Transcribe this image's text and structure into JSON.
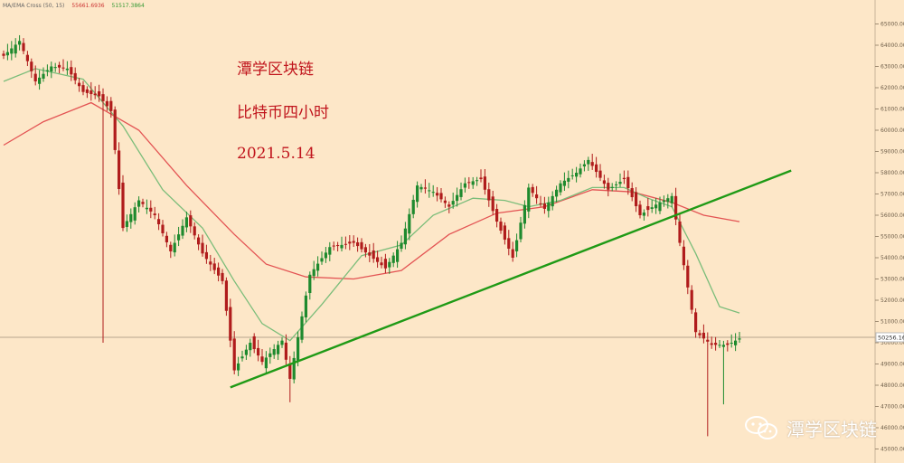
{
  "indicator": {
    "label": "MA/EMA Cross (50, 15)",
    "val1": "55661.6936",
    "val2": "51517.3864"
  },
  "annotations": {
    "title": "潭学区块链",
    "subtitle": "比特币四小时",
    "date": "2021.5.14"
  },
  "watermark": "潭学区块链",
  "colors": {
    "background": "#fde7c8",
    "up": "#1e8a2e",
    "down": "#b01c1c",
    "ma_slow": "#e35353",
    "ma_fast": "#7bbd7a",
    "trendline": "#1f9a16",
    "price_line": "#b7a58e"
  },
  "chart_data": {
    "type": "candlestick",
    "title": "",
    "ylim": [
      45000,
      66000
    ],
    "y_ticks": [
      "65000.00",
      "64000.00",
      "63000.00",
      "62000.00",
      "61000.00",
      "60000.00",
      "59000.00",
      "58000.00",
      "57000.00",
      "56000.00",
      "55000.00",
      "54000.00",
      "53000.00",
      "52000.00",
      "51000.00",
      "50000.00",
      "49000.00",
      "48000.00",
      "47000.00",
      "46000.00",
      "45000.00"
    ],
    "current_price": {
      "label": "50256.16",
      "value": 50256.16
    },
    "anchors": [
      [
        0,
        63500
      ],
      [
        4,
        64200
      ],
      [
        8,
        62300
      ],
      [
        12,
        63000
      ],
      [
        16,
        62900
      ],
      [
        20,
        61800
      ],
      [
        24,
        61600
      ],
      [
        27,
        60900
      ],
      [
        30,
        55400
      ],
      [
        34,
        56700
      ],
      [
        38,
        56000
      ],
      [
        42,
        54300
      ],
      [
        46,
        55900
      ],
      [
        50,
        54200
      ],
      [
        55,
        52900
      ],
      [
        58,
        48700
      ],
      [
        62,
        50000
      ],
      [
        65,
        49100
      ],
      [
        70,
        50100
      ],
      [
        72,
        48300
      ],
      [
        77,
        53200
      ],
      [
        82,
        54500
      ],
      [
        88,
        54700
      ],
      [
        92,
        54100
      ],
      [
        96,
        53500
      ],
      [
        100,
        54700
      ],
      [
        104,
        57400
      ],
      [
        108,
        57100
      ],
      [
        112,
        56400
      ],
      [
        116,
        57500
      ],
      [
        120,
        57700
      ],
      [
        124,
        55700
      ],
      [
        128,
        54000
      ],
      [
        132,
        57300
      ],
      [
        136,
        56300
      ],
      [
        140,
        57500
      ],
      [
        144,
        58000
      ],
      [
        147,
        58600
      ],
      [
        152,
        57200
      ],
      [
        156,
        57700
      ],
      [
        160,
        56000
      ],
      [
        164,
        56500
      ],
      [
        168,
        56900
      ],
      [
        170,
        54700
      ],
      [
        174,
        50500
      ],
      [
        178,
        49900
      ],
      [
        182,
        49900
      ],
      [
        185,
        50200
      ]
    ],
    "ma_fast": [
      [
        0,
        62300
      ],
      [
        8,
        62900
      ],
      [
        20,
        62400
      ],
      [
        30,
        60200
      ],
      [
        40,
        57200
      ],
      [
        50,
        55400
      ],
      [
        58,
        52900
      ],
      [
        65,
        50900
      ],
      [
        72,
        50100
      ],
      [
        80,
        51800
      ],
      [
        90,
        54100
      ],
      [
        100,
        54600
      ],
      [
        108,
        56000
      ],
      [
        118,
        56800
      ],
      [
        126,
        56700
      ],
      [
        132,
        56400
      ],
      [
        140,
        56700
      ],
      [
        148,
        57300
      ],
      [
        156,
        57300
      ],
      [
        162,
        56800
      ],
      [
        168,
        56400
      ],
      [
        174,
        54200
      ],
      [
        180,
        51700
      ],
      [
        185,
        51400
      ]
    ],
    "ma_slow": [
      [
        0,
        59300
      ],
      [
        10,
        60400
      ],
      [
        22,
        61300
      ],
      [
        34,
        60000
      ],
      [
        46,
        57400
      ],
      [
        58,
        55100
      ],
      [
        66,
        53700
      ],
      [
        76,
        53100
      ],
      [
        88,
        53000
      ],
      [
        100,
        53400
      ],
      [
        112,
        55100
      ],
      [
        124,
        56100
      ],
      [
        136,
        56400
      ],
      [
        148,
        57200
      ],
      [
        158,
        57100
      ],
      [
        168,
        56600
      ],
      [
        176,
        56000
      ],
      [
        185,
        55700
      ]
    ],
    "trendline": {
      "from": [
        57,
        47900
      ],
      "to": [
        198,
        58100
      ]
    },
    "deep_wicks": [
      {
        "index": 25,
        "low": 50000
      },
      {
        "index": 72,
        "low": 47200
      },
      {
        "index": 177,
        "low": 45600
      },
      {
        "index": 181,
        "low": 47100
      }
    ]
  }
}
